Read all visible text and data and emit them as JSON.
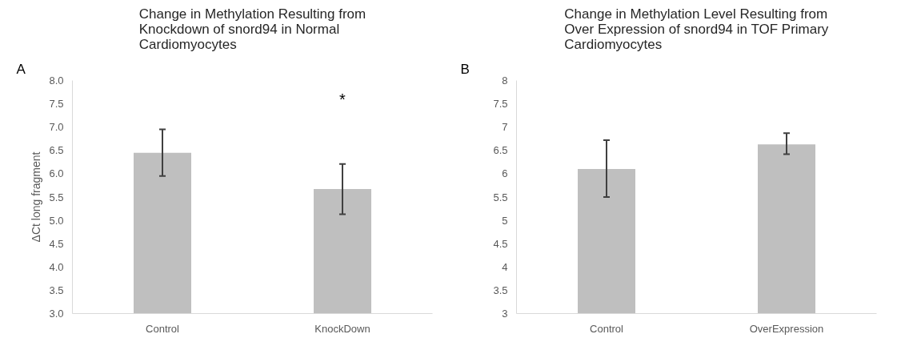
{
  "chart_data": [
    {
      "type": "bar",
      "title": "Change in Methylation Resulting from Knockdown of snord94 in Normal Cardiomyocytes",
      "ylabel": "ΔCt long fragment",
      "categories": [
        "Control",
        "KnockDown"
      ],
      "values": [
        6.45,
        5.67
      ],
      "errors": [
        [
          5.95,
          6.95
        ],
        [
          5.13,
          6.21
        ]
      ],
      "color": "#bfbfbf",
      "ylim": [
        3,
        8
      ],
      "yticks": [
        {
          "value": 3,
          "label": "3.0"
        },
        {
          "value": 3.5,
          "label": "3.5"
        },
        {
          "value": 4,
          "label": "4.0"
        },
        {
          "value": 4.5,
          "label": "4.5"
        },
        {
          "value": 5,
          "label": "5.0"
        },
        {
          "value": 5.5,
          "label": "5.5"
        },
        {
          "value": 6,
          "label": "6.0"
        },
        {
          "value": 6.5,
          "label": "6.5"
        },
        {
          "value": 7,
          "label": "7.0"
        },
        {
          "value": 7.5,
          "label": "7.5"
        },
        {
          "value": 8,
          "label": "8.0"
        }
      ],
      "grid": false,
      "annotations": [
        "A",
        "*"
      ]
    },
    {
      "type": "bar",
      "title": "Change in Methylation Level Resulting from Over Expression of snord94 in TOF Primary Cardiomyocytes",
      "categories": [
        "Control",
        "OverExpression"
      ],
      "values": [
        6.1,
        6.63
      ],
      "errors": [
        [
          5.5,
          6.72
        ],
        [
          6.42,
          6.87
        ]
      ],
      "color": "#bfbfbf",
      "ylim": [
        3,
        8
      ],
      "yticks": [
        3,
        3.5,
        4,
        4.5,
        5,
        5.5,
        6,
        6.5,
        7,
        7.5,
        8
      ],
      "grid": false,
      "annotations": [
        "B"
      ]
    }
  ]
}
